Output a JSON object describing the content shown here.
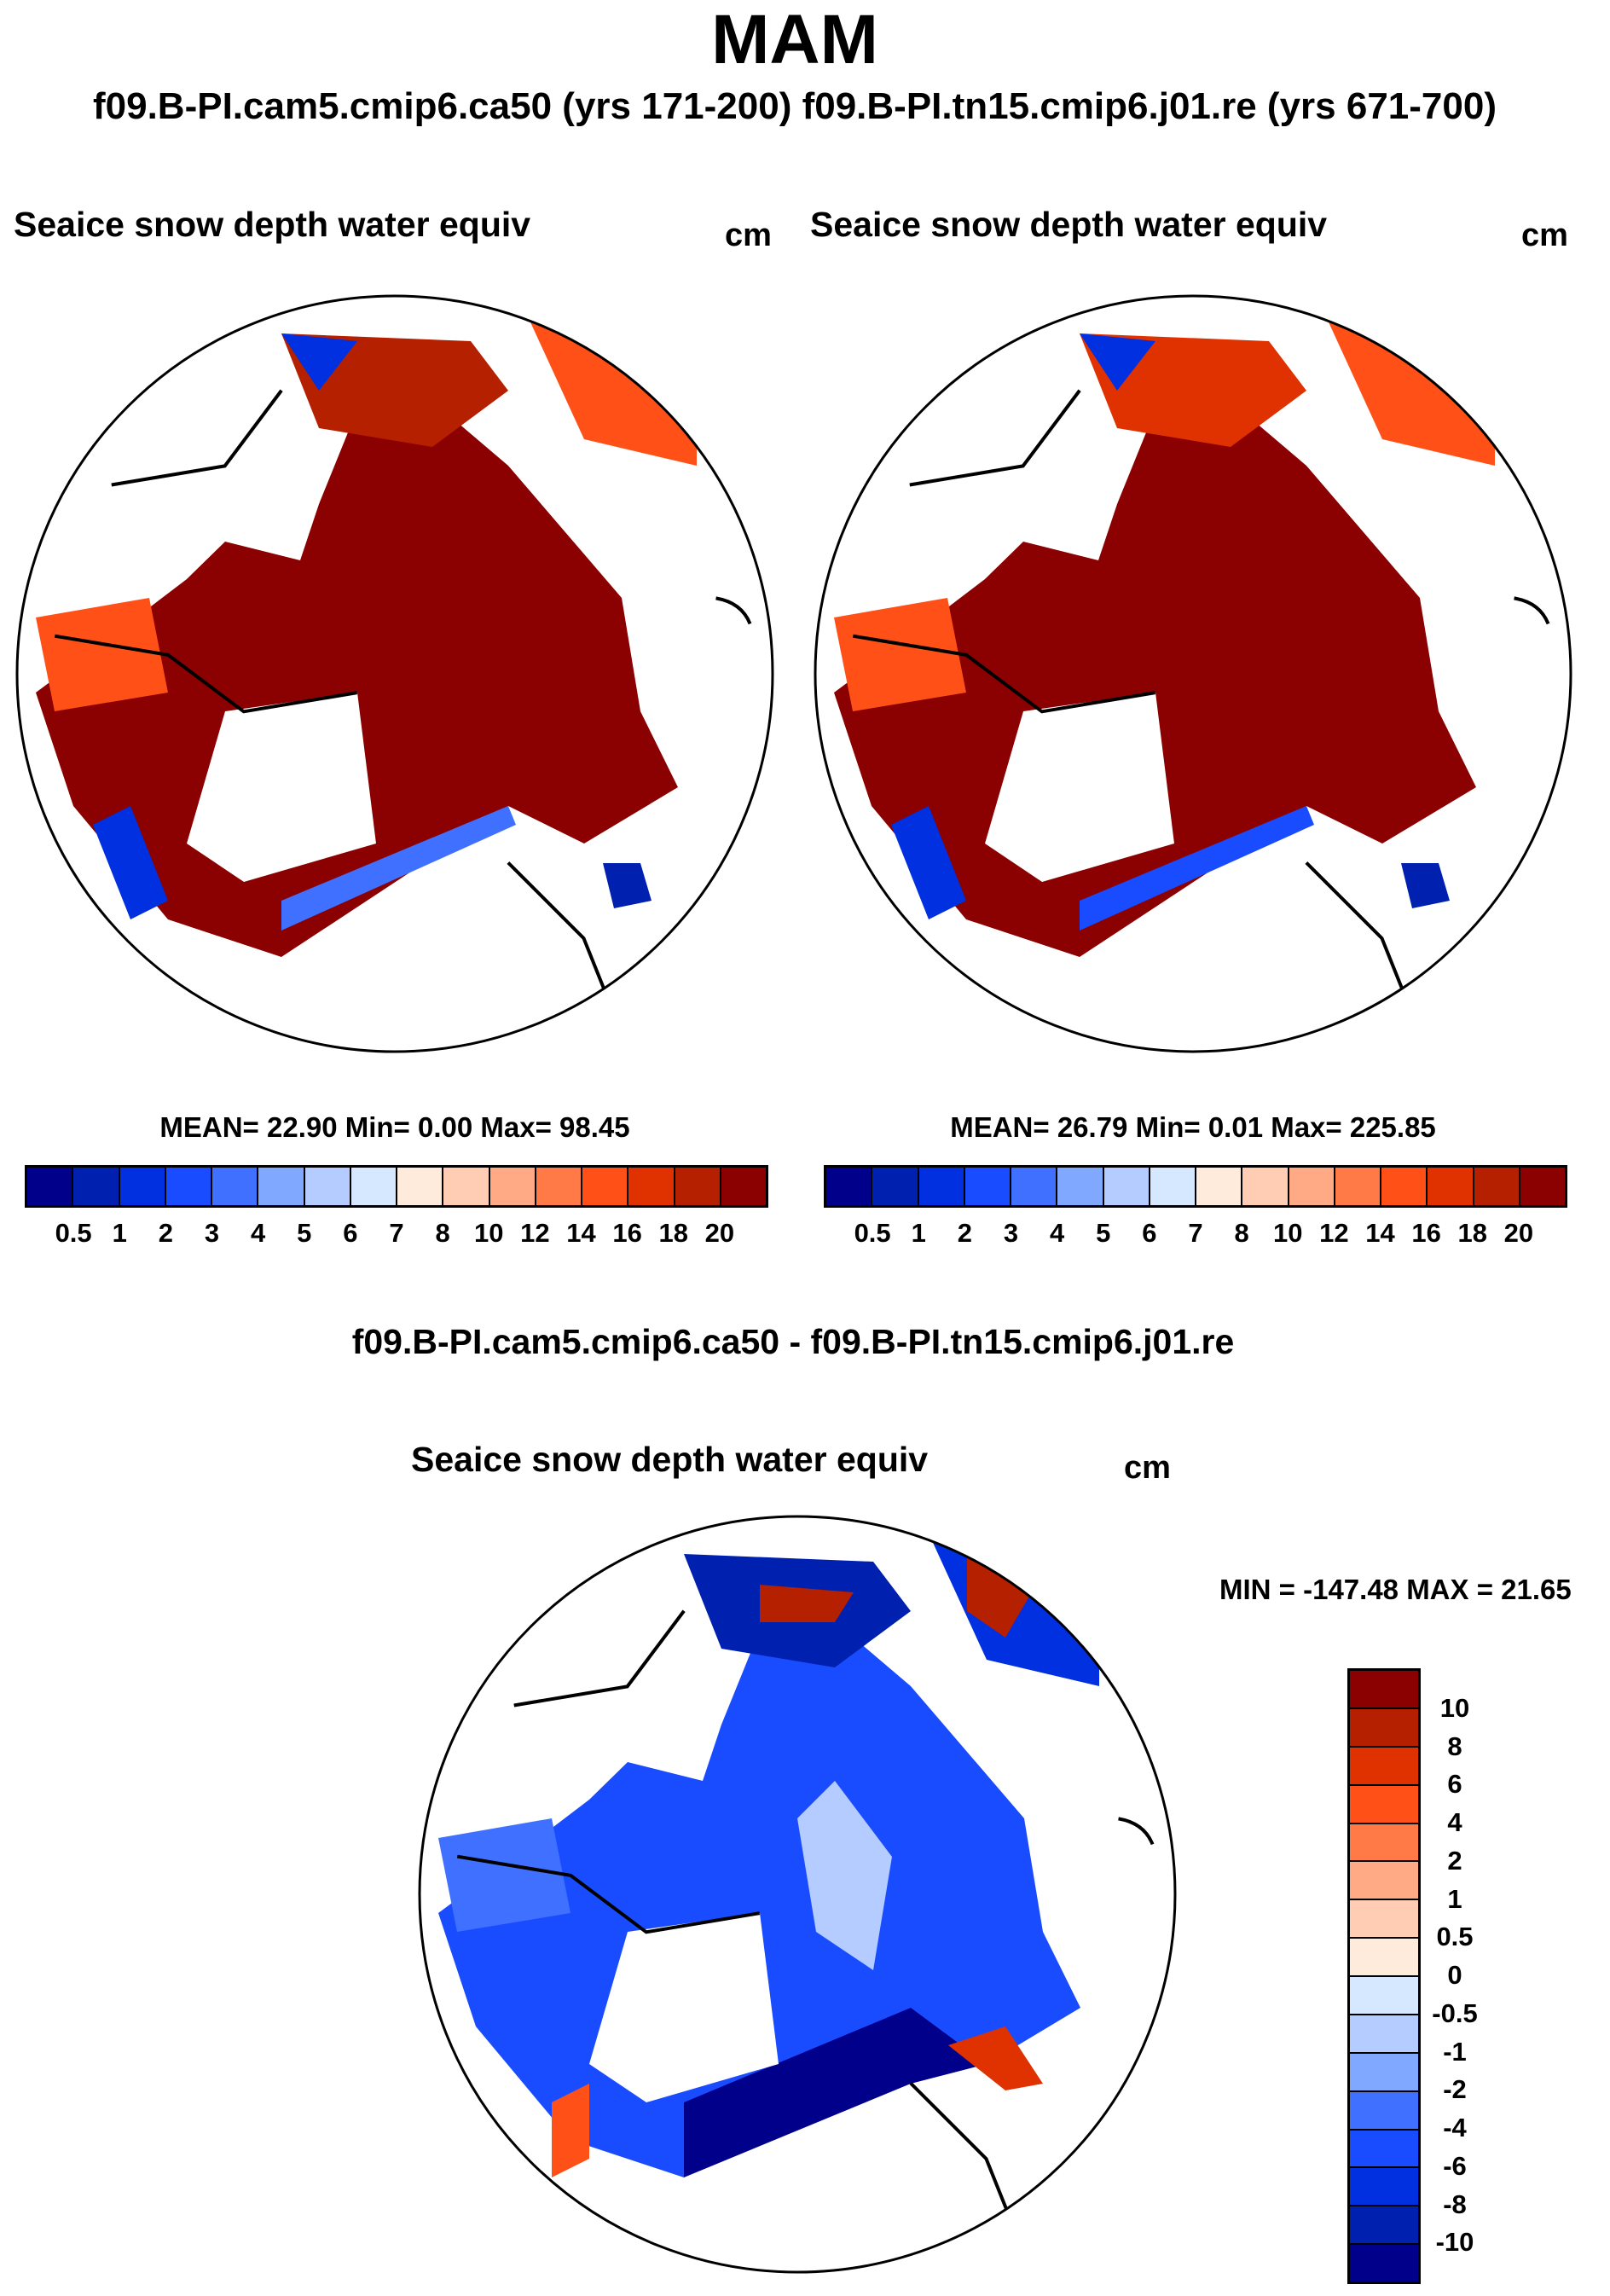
{
  "title": "MAM",
  "subtitle": "f09.B-PI.cam5.cmip6.ca50 (yrs 171-200)  f09.B-PI.tn15.cmip6.j01.re (yrs 671-700)",
  "panels": [
    {
      "title": "Seaice snow depth water equiv",
      "units": "cm",
      "stats": "MEAN=  22.90  Min=   0.00  Max=  98.45"
    },
    {
      "title": "Seaice snow depth water equiv",
      "units": "cm",
      "stats": "MEAN=  26.79  Min=   0.01  Max= 225.85"
    }
  ],
  "diff": {
    "heading": "f09.B-PI.cam5.cmip6.ca50 - f09.B-PI.tn15.cmip6.j01.re",
    "title": "Seaice snow depth water equiv",
    "units": "cm",
    "stats": "MIN = -147.48 MAX =  21.65"
  },
  "chart_data": {
    "type": "heatmap",
    "colors": [
      "#00008b",
      "#0020b0",
      "#0030e0",
      "#1a4cff",
      "#4070ff",
      "#80a8ff",
      "#b4ccff",
      "#d6e8ff",
      "#ffebdc",
      "#ffccb4",
      "#ffaa84",
      "#ff7a46",
      "#ff5018",
      "#e03200",
      "#b42000",
      "#8b0000"
    ],
    "levels": [
      "0.5",
      "1",
      "2",
      "3",
      "4",
      "5",
      "6",
      "7",
      "8",
      "10",
      "12",
      "14",
      "16",
      "18",
      "20"
    ],
    "diff_levels": [
      "10",
      "8",
      "6",
      "4",
      "2",
      "1",
      "0.5",
      "0",
      "-0.5",
      "-1",
      "-2",
      "-4",
      "-6",
      "-8",
      "-10"
    ]
  }
}
